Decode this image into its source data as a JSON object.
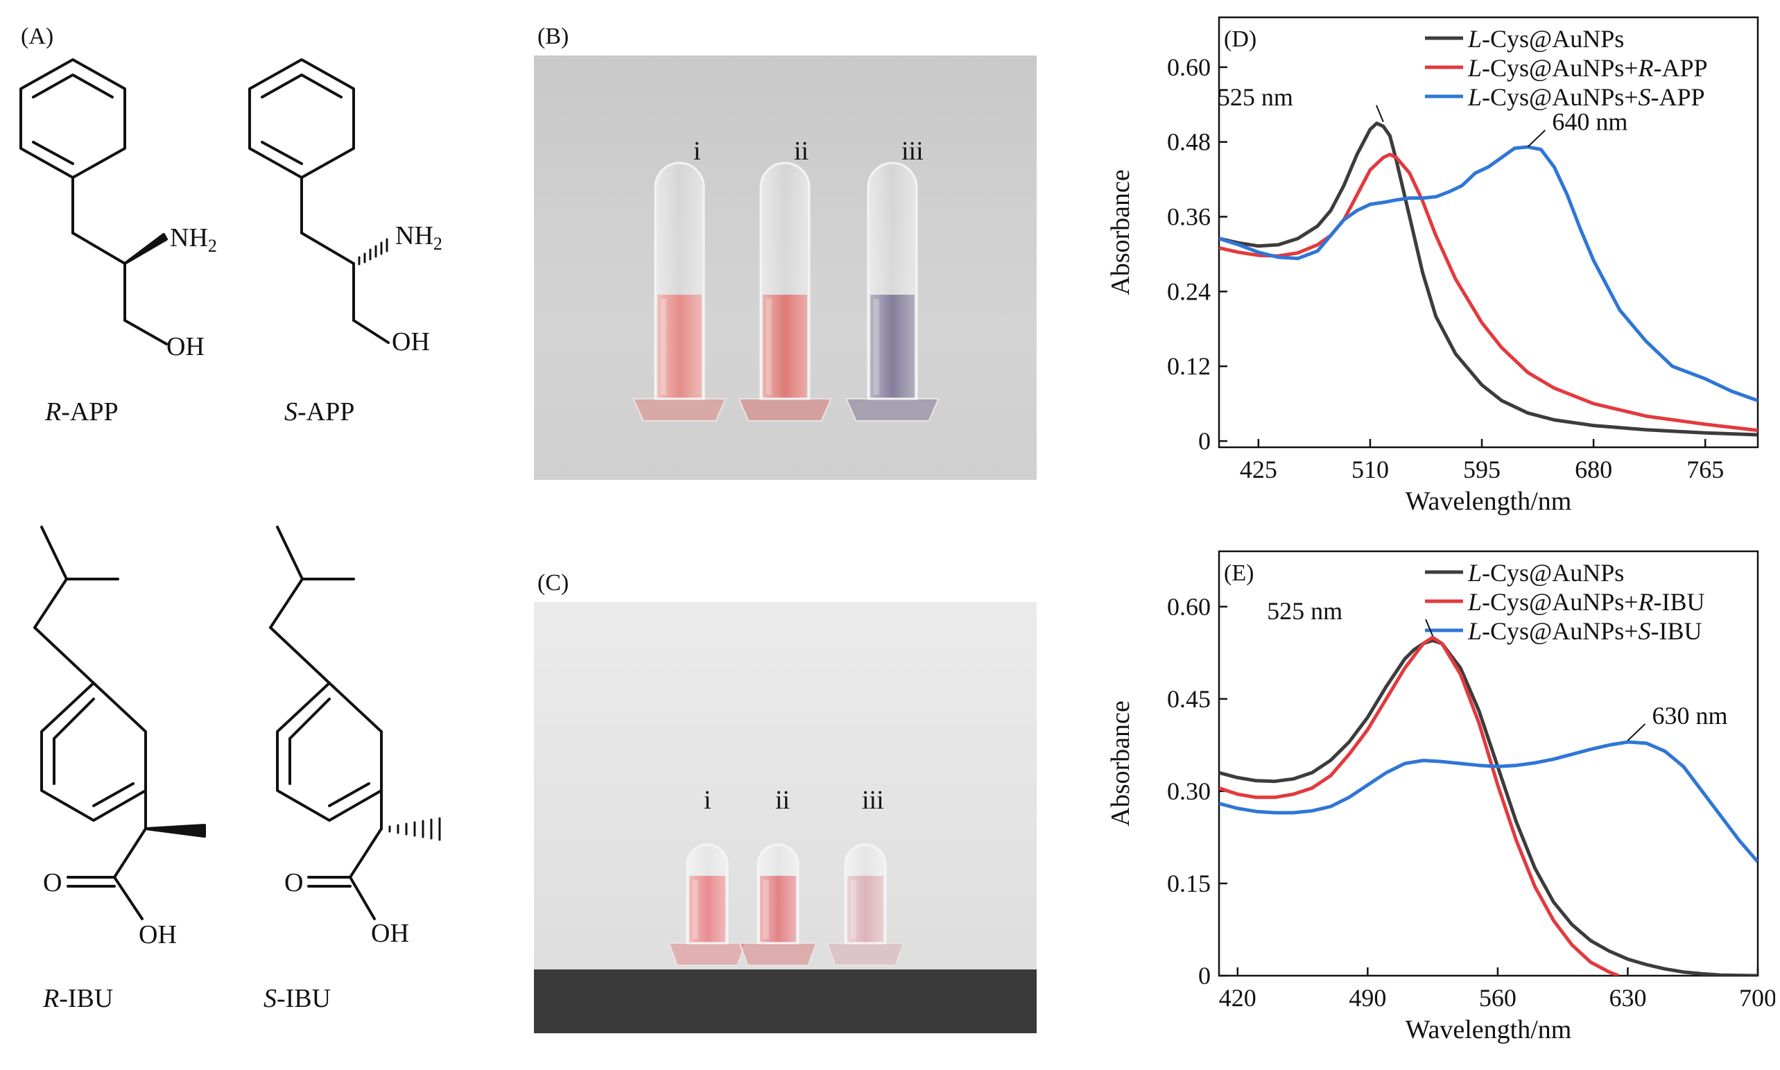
{
  "panels": {
    "a": "(A)",
    "b": "(B)",
    "c": "(C)",
    "d": "(D)",
    "e": "(E)"
  },
  "molecules": {
    "r_app": {
      "prefix": "R",
      "suffix": "-APP",
      "amine": "NH",
      "amine_sub": "2",
      "hydroxyl": "OH"
    },
    "s_app": {
      "prefix": "S",
      "suffix": "-APP",
      "amine": "NH",
      "amine_sub": "2",
      "hydroxyl": "OH"
    },
    "r_ibu": {
      "prefix": "R",
      "suffix": "-IBU",
      "oxo": "O",
      "hydroxyl": "OH"
    },
    "s_ibu": {
      "prefix": "S",
      "suffix": "-IBU",
      "oxo": "O",
      "hydroxyl": "OH"
    }
  },
  "photos": {
    "b": {
      "tubes": [
        {
          "label": "i",
          "color": "#e07a74"
        },
        {
          "label": "ii",
          "color": "#d8645f"
        },
        {
          "label": "iii",
          "color": "#6e6788"
        }
      ]
    },
    "c": {
      "tubes": [
        {
          "label": "i",
          "color": "#e4797c"
        },
        {
          "label": "ii",
          "color": "#dc6f72"
        },
        {
          "label": "iii",
          "color": "#d6a6ad"
        }
      ]
    }
  },
  "chart_data": [
    {
      "panel": "(D)",
      "type": "line",
      "xlabel": "Wavelength/nm",
      "ylabel": "Absorbance",
      "xlim": [
        395,
        805
      ],
      "ylim": [
        -0.01,
        0.68
      ],
      "xticks": [
        425,
        510,
        595,
        680,
        765
      ],
      "yticks": [
        0,
        0.12,
        0.24,
        0.36,
        0.48,
        0.6
      ],
      "ytick_labels": [
        "0",
        "0.12",
        "0.24",
        "0.36",
        "0.48",
        "0.60"
      ],
      "legend": "top-right",
      "annotations": [
        {
          "text": "525 nm",
          "x": 520,
          "y": 0.51
        },
        {
          "text": "640 nm",
          "x": 630,
          "y": 0.47
        }
      ],
      "series": [
        {
          "name_italic": "L",
          "name_rest": "-Cys@AuNPs",
          "color": "#3c3c3c",
          "x": [
            395,
            410,
            425,
            440,
            455,
            470,
            480,
            490,
            500,
            510,
            515,
            520,
            525,
            530,
            540,
            550,
            560,
            575,
            595,
            610,
            630,
            650,
            680,
            720,
            765,
            805
          ],
          "y": [
            0.325,
            0.318,
            0.313,
            0.315,
            0.325,
            0.345,
            0.37,
            0.41,
            0.46,
            0.5,
            0.51,
            0.505,
            0.49,
            0.45,
            0.36,
            0.27,
            0.2,
            0.14,
            0.09,
            0.065,
            0.045,
            0.034,
            0.025,
            0.018,
            0.013,
            0.01
          ]
        },
        {
          "name_italic": "L",
          "name_rest": "-Cys@AuNPs+",
          "name_italic2": "R",
          "name_rest2": "-APP",
          "color": "#e23a3e",
          "x": [
            395,
            410,
            425,
            440,
            455,
            470,
            480,
            490,
            500,
            510,
            520,
            525,
            530,
            540,
            550,
            560,
            575,
            595,
            610,
            630,
            650,
            680,
            720,
            765,
            805
          ],
          "y": [
            0.31,
            0.303,
            0.298,
            0.297,
            0.302,
            0.315,
            0.33,
            0.355,
            0.395,
            0.435,
            0.455,
            0.46,
            0.455,
            0.43,
            0.385,
            0.33,
            0.26,
            0.19,
            0.15,
            0.11,
            0.085,
            0.06,
            0.04,
            0.027,
            0.017
          ]
        },
        {
          "name_italic": "L",
          "name_rest": "-Cys@AuNPs+",
          "name_italic2": "S",
          "name_rest2": "-APP",
          "color": "#2f76d6",
          "x": [
            395,
            410,
            425,
            440,
            455,
            470,
            480,
            490,
            500,
            510,
            520,
            530,
            540,
            550,
            560,
            570,
            580,
            590,
            600,
            610,
            620,
            630,
            640,
            650,
            660,
            670,
            680,
            700,
            720,
            740,
            765,
            785,
            805
          ],
          "y": [
            0.325,
            0.315,
            0.303,
            0.295,
            0.293,
            0.305,
            0.33,
            0.355,
            0.37,
            0.38,
            0.383,
            0.387,
            0.39,
            0.39,
            0.392,
            0.4,
            0.41,
            0.43,
            0.44,
            0.455,
            0.47,
            0.472,
            0.468,
            0.44,
            0.395,
            0.34,
            0.29,
            0.21,
            0.16,
            0.12,
            0.1,
            0.08,
            0.065
          ]
        }
      ]
    },
    {
      "panel": "(E)",
      "type": "line",
      "xlabel": "Wavelength/nm",
      "ylabel": "Absorbance",
      "xlim": [
        410,
        700
      ],
      "ylim": [
        0,
        0.69
      ],
      "xticks": [
        420,
        490,
        560,
        630,
        700
      ],
      "yticks": [
        0,
        0.15,
        0.3,
        0.45,
        0.6
      ],
      "ytick_labels": [
        "0",
        "0.15",
        "0.30",
        "0.45",
        "0.60"
      ],
      "legend": "top-right",
      "annotations": [
        {
          "text": "525 nm",
          "x": 525,
          "y": 0.55
        },
        {
          "text": "630 nm",
          "x": 630,
          "y": 0.38
        }
      ],
      "series": [
        {
          "name_italic": "L",
          "name_rest": "-Cys@AuNPs",
          "color": "#3c3c3c",
          "x": [
            410,
            420,
            430,
            440,
            450,
            460,
            470,
            480,
            490,
            500,
            510,
            515,
            520,
            525,
            530,
            540,
            550,
            560,
            570,
            580,
            590,
            600,
            610,
            620,
            630,
            640,
            650,
            660,
            670,
            680,
            700
          ],
          "y": [
            0.33,
            0.322,
            0.317,
            0.316,
            0.32,
            0.33,
            0.35,
            0.38,
            0.42,
            0.47,
            0.515,
            0.53,
            0.54,
            0.545,
            0.54,
            0.5,
            0.43,
            0.34,
            0.25,
            0.175,
            0.12,
            0.083,
            0.057,
            0.04,
            0.027,
            0.018,
            0.011,
            0.006,
            0.003,
            0.001,
            0
          ]
        },
        {
          "name_italic": "L",
          "name_rest": "-Cys@AuNPs+",
          "name_italic2": "R",
          "name_rest2": "-IBU",
          "color": "#e23a3e",
          "x": [
            410,
            420,
            430,
            440,
            450,
            460,
            470,
            480,
            490,
            500,
            510,
            520,
            525,
            530,
            540,
            550,
            560,
            570,
            580,
            590,
            600,
            610,
            620,
            625
          ],
          "y": [
            0.305,
            0.295,
            0.29,
            0.29,
            0.295,
            0.305,
            0.325,
            0.36,
            0.4,
            0.45,
            0.5,
            0.54,
            0.55,
            0.54,
            0.49,
            0.41,
            0.31,
            0.22,
            0.145,
            0.09,
            0.05,
            0.022,
            0.006,
            0.0
          ]
        },
        {
          "name_italic": "L",
          "name_rest": "-Cys@AuNPs+",
          "name_italic2": "S",
          "name_rest2": "-IBU",
          "color": "#2f76d6",
          "x": [
            410,
            420,
            430,
            440,
            450,
            460,
            470,
            480,
            490,
            500,
            510,
            520,
            530,
            540,
            550,
            560,
            570,
            580,
            590,
            600,
            610,
            620,
            630,
            640,
            650,
            660,
            670,
            680,
            690,
            700
          ],
          "y": [
            0.28,
            0.272,
            0.267,
            0.265,
            0.265,
            0.268,
            0.275,
            0.29,
            0.31,
            0.33,
            0.345,
            0.35,
            0.348,
            0.345,
            0.342,
            0.34,
            0.342,
            0.346,
            0.352,
            0.36,
            0.368,
            0.375,
            0.38,
            0.378,
            0.365,
            0.34,
            0.3,
            0.26,
            0.22,
            0.185
          ]
        }
      ]
    }
  ]
}
